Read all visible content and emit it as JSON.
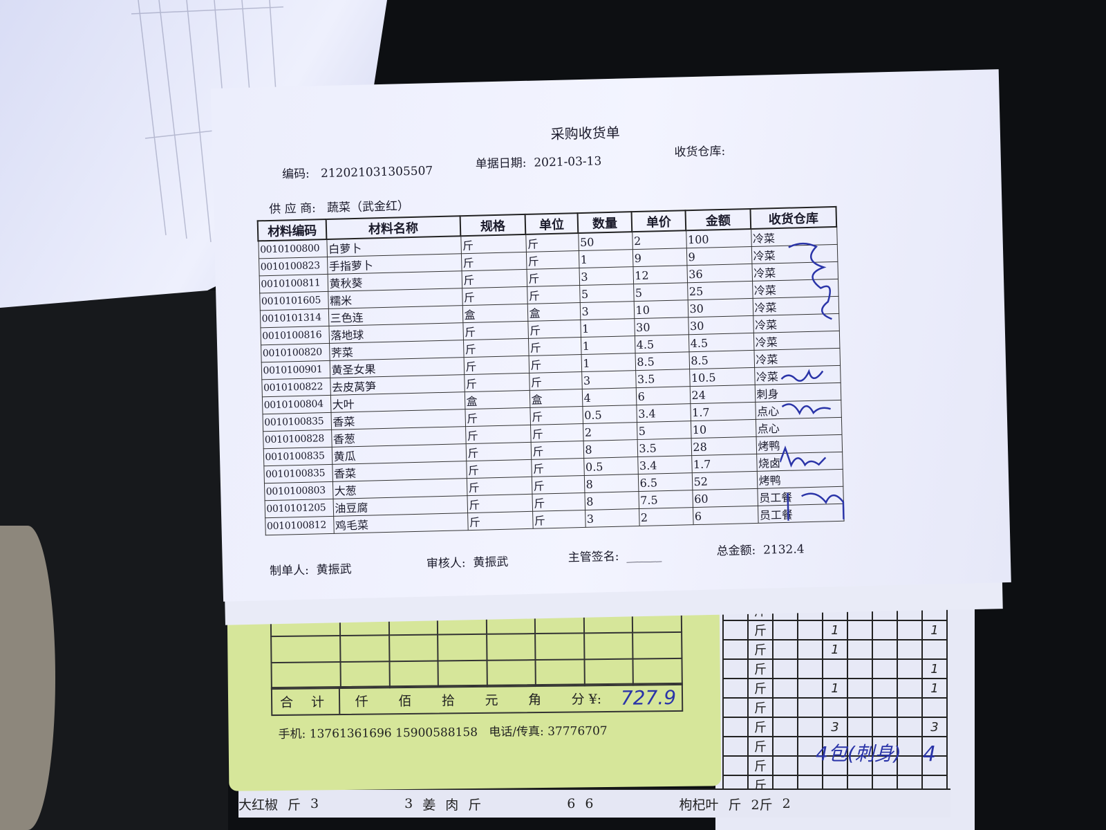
{
  "receipt": {
    "title": "采购收货单",
    "doc_no_label": "编码:",
    "doc_no": "212021031305507",
    "date_label": "单据日期:",
    "date": "2021-03-13",
    "warehouse_label": "收货仓库:",
    "supplier_label": "供 应 商:",
    "supplier": "蔬菜（武金红）",
    "columns": [
      "材料编码",
      "材料名称",
      "规格",
      "单位",
      "数量",
      "单价",
      "金额",
      "收货仓库"
    ],
    "rows": [
      {
        "code": "0010100800",
        "name": "白萝卜",
        "spec": "斤",
        "unit": "斤",
        "qty": "50",
        "price": "2",
        "amount": "100",
        "warehouse": "冷菜"
      },
      {
        "code": "0010100823",
        "name": "手指萝卜",
        "spec": "斤",
        "unit": "斤",
        "qty": "1",
        "price": "9",
        "amount": "9",
        "warehouse": "冷菜"
      },
      {
        "code": "0010100811",
        "name": "黄秋葵",
        "spec": "斤",
        "unit": "斤",
        "qty": "3",
        "price": "12",
        "amount": "36",
        "warehouse": "冷菜"
      },
      {
        "code": "0010101605",
        "name": "糯米",
        "spec": "斤",
        "unit": "斤",
        "qty": "5",
        "price": "5",
        "amount": "25",
        "warehouse": "冷菜"
      },
      {
        "code": "0010101314",
        "name": "三色连",
        "spec": "盒",
        "unit": "盒",
        "qty": "3",
        "price": "10",
        "amount": "30",
        "warehouse": "冷菜"
      },
      {
        "code": "0010100816",
        "name": "落地球",
        "spec": "斤",
        "unit": "斤",
        "qty": "1",
        "price": "30",
        "amount": "30",
        "warehouse": "冷菜"
      },
      {
        "code": "0010100820",
        "name": "荠菜",
        "spec": "斤",
        "unit": "斤",
        "qty": "1",
        "price": "4.5",
        "amount": "4.5",
        "warehouse": "冷菜"
      },
      {
        "code": "0010100901",
        "name": "黄圣女果",
        "spec": "斤",
        "unit": "斤",
        "qty": "1",
        "price": "8.5",
        "amount": "8.5",
        "warehouse": "冷菜"
      },
      {
        "code": "0010100822",
        "name": "去皮莴笋",
        "spec": "斤",
        "unit": "斤",
        "qty": "3",
        "price": "3.5",
        "amount": "10.5",
        "warehouse": "冷菜"
      },
      {
        "code": "0010100804",
        "name": "大叶",
        "spec": "盒",
        "unit": "盒",
        "qty": "4",
        "price": "6",
        "amount": "24",
        "warehouse": "刺身"
      },
      {
        "code": "0010100835",
        "name": "香菜",
        "spec": "斤",
        "unit": "斤",
        "qty": "0.5",
        "price": "3.4",
        "amount": "1.7",
        "warehouse": "点心"
      },
      {
        "code": "0010100828",
        "name": "香葱",
        "spec": "斤",
        "unit": "斤",
        "qty": "2",
        "price": "5",
        "amount": "10",
        "warehouse": "点心"
      },
      {
        "code": "0010100835",
        "name": "黄瓜",
        "spec": "斤",
        "unit": "斤",
        "qty": "8",
        "price": "3.5",
        "amount": "28",
        "warehouse": "烤鸭"
      },
      {
        "code": "0010100835",
        "name": "香菜",
        "spec": "斤",
        "unit": "斤",
        "qty": "0.5",
        "price": "3.4",
        "amount": "1.7",
        "warehouse": "烧卤"
      },
      {
        "code": "0010100803",
        "name": "大葱",
        "spec": "斤",
        "unit": "斤",
        "qty": "8",
        "price": "6.5",
        "amount": "52",
        "warehouse": "烤鸭"
      },
      {
        "code": "0010101205",
        "name": "油豆腐",
        "spec": "斤",
        "unit": "斤",
        "qty": "8",
        "price": "7.5",
        "amount": "60",
        "warehouse": "员工餐"
      },
      {
        "code": "0010100812",
        "name": "鸡毛菜",
        "spec": "斤",
        "unit": "斤",
        "qty": "3",
        "price": "2",
        "amount": "6",
        "warehouse": "员工餐"
      }
    ],
    "maker_label": "制单人:",
    "maker": "黄振武",
    "reviewer_label": "审核人:",
    "reviewer": "黄振武",
    "supervisor_label": "主管签名:",
    "supervisor": "______",
    "total_label": "总金额:",
    "total": "2132.4"
  },
  "slip": {
    "total_label": "合 计",
    "units": [
      "仟",
      "佰",
      "拾",
      "元",
      "角",
      "分 ¥:"
    ],
    "amount_handwritten": "727.9",
    "phone_label": "手机:",
    "phones": "13761361696 15900588158",
    "tel_label": "电话/传真:",
    "tel": "37776707"
  },
  "grid_sheet": {
    "unit": "斤",
    "col1": [
      "",
      "1",
      "1",
      "",
      "1",
      "",
      "3",
      "",
      "",
      ""
    ],
    "col_last": [
      "",
      "1",
      "",
      "1",
      "1",
      "",
      "3",
      "",
      "",
      ""
    ],
    "note": "4包(刺身)",
    "note_qty": "4"
  },
  "bottom_strip": [
    "大红椒",
    "斤",
    "3",
    "3",
    "姜",
    "肉",
    "斤",
    "6",
    "6",
    "枸杞叶",
    "斤",
    "2斤",
    "2"
  ]
}
